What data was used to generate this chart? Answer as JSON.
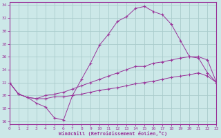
{
  "xlabel": "Windchill (Refroidissement éolien,°C)",
  "background_color": "#cce8e8",
  "grid_color": "#aacccc",
  "line_color": "#993399",
  "xlim": [
    0,
    23
  ],
  "ylim": [
    15.5,
    34.5
  ],
  "xticks": [
    0,
    1,
    2,
    3,
    4,
    5,
    6,
    7,
    8,
    9,
    10,
    11,
    12,
    13,
    14,
    15,
    16,
    17,
    18,
    19,
    20,
    21,
    22,
    23
  ],
  "yticks": [
    16,
    18,
    20,
    22,
    24,
    26,
    28,
    30,
    32,
    34
  ],
  "line1_x": [
    0,
    1,
    2,
    3,
    4,
    5,
    6,
    7,
    8,
    9,
    10,
    11,
    12,
    13,
    14,
    15,
    16,
    17,
    18,
    19,
    20,
    21,
    22,
    23
  ],
  "line1_y": [
    22.0,
    20.2,
    19.7,
    18.8,
    18.2,
    16.5,
    16.2,
    20.0,
    22.5,
    25.0,
    27.8,
    29.5,
    31.5,
    32.2,
    33.5,
    33.8,
    33.0,
    32.5,
    31.0,
    28.5,
    26.0,
    25.8,
    23.5,
    22.0
  ],
  "line2_x": [
    0,
    1,
    2,
    3,
    4,
    5,
    6,
    7,
    8,
    9,
    10,
    11,
    12,
    13,
    14,
    15,
    16,
    17,
    18,
    19,
    20,
    21,
    22,
    23
  ],
  "line2_y": [
    22.0,
    20.2,
    19.7,
    19.5,
    20.0,
    20.2,
    20.5,
    21.0,
    21.5,
    22.0,
    22.5,
    23.0,
    23.5,
    24.0,
    24.5,
    24.5,
    25.0,
    25.2,
    25.5,
    25.8,
    26.0,
    26.0,
    25.5,
    22.0
  ],
  "line3_x": [
    0,
    1,
    2,
    3,
    4,
    5,
    6,
    7,
    8,
    9,
    10,
    11,
    12,
    13,
    14,
    15,
    16,
    17,
    18,
    19,
    20,
    21,
    22,
    23
  ],
  "line3_y": [
    22.0,
    20.2,
    19.7,
    19.5,
    19.5,
    19.8,
    19.8,
    20.0,
    20.2,
    20.5,
    20.8,
    21.0,
    21.2,
    21.5,
    21.8,
    22.0,
    22.2,
    22.5,
    22.8,
    23.0,
    23.2,
    23.5,
    23.0,
    22.0
  ]
}
